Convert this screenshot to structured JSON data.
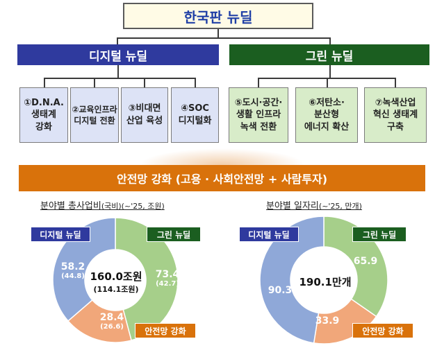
{
  "top": {
    "title": "한국판 뉴딜"
  },
  "headers": {
    "digital": "디지털 뉴딜",
    "green": "그린 뉴딜"
  },
  "digital_items": [
    "①D.N.A.\n생태계\n강화",
    "②교육인프라\n디지털 전환",
    "③비대면\n산업 육성",
    "④SOC\n디지털화"
  ],
  "green_items": [
    "⑤도시·공간·\n생활 인프라\n녹색 전환",
    "⑥저탄소·\n분산형\n에너지 확산",
    "⑦녹색산업\n혁신 생태계\n구축"
  ],
  "safety_bar": "안전망 강화 (고용 · 사회안전망 + 사람투자)",
  "budget_chart": {
    "title": "분야별 총사업비",
    "subtitle": "(국비)(~'25, 조원)",
    "center_value": "160.0조원",
    "center_sub": "(114.1조원)",
    "legend": {
      "digital": "디지털 뉴딜",
      "green": "그린 뉴딜",
      "safety": "안전망 강화"
    }
  },
  "jobs_chart": {
    "title": "분야별 일자리",
    "subtitle": "(~'25, 만개)",
    "center_value": "190.1만개",
    "legend": {
      "digital": "디지털 뉴딜",
      "green": "그린 뉴딜",
      "safety": "안전망 강화"
    }
  },
  "colors": {
    "digital": "#8fa8d8",
    "green": "#a6cf8a",
    "safety": "#f1a77a",
    "digital_tag": "#2f3a9e",
    "green_tag": "#1b5e20",
    "safety_tag": "#d9720b"
  },
  "chart_data": [
    {
      "type": "pie",
      "title": "분야별 총사업비",
      "categories": [
        "그린 뉴딜",
        "안전망 강화",
        "디지털 뉴딜"
      ],
      "series": [
        {
          "name": "총사업비",
          "values": [
            73.4,
            28.4,
            58.2
          ]
        },
        {
          "name": "국비",
          "values": [
            42.7,
            26.6,
            44.8
          ]
        }
      ],
      "labels": [
        "73.4",
        "28.4",
        "58.2"
      ],
      "sub_labels": [
        "(42.7)",
        "(26.6)",
        "(44.8)"
      ]
    },
    {
      "type": "pie",
      "title": "분야별 일자리",
      "categories": [
        "그린 뉴딜",
        "안전망 강화",
        "디지털 뉴딜"
      ],
      "values": [
        65.9,
        33.9,
        90.3
      ],
      "labels": [
        "65.9",
        "33.9",
        "90.3"
      ]
    }
  ]
}
